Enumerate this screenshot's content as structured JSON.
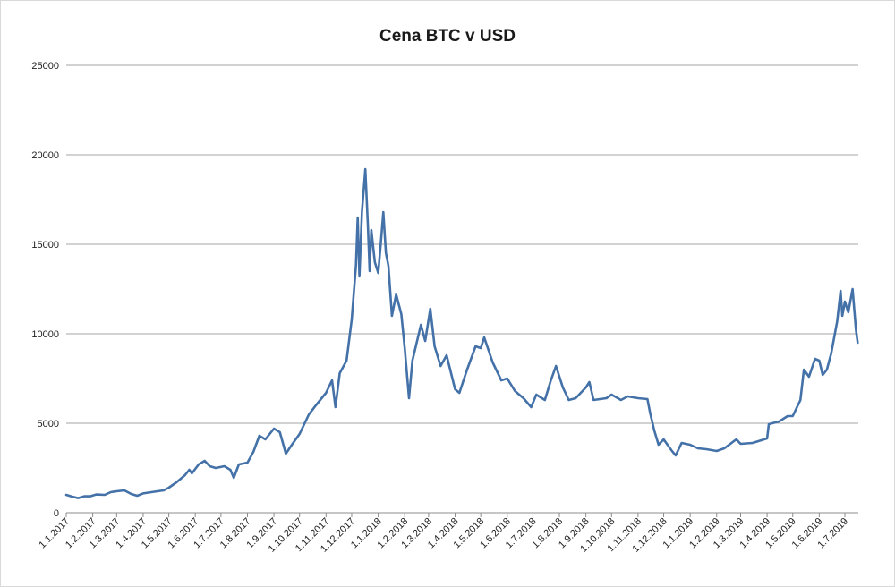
{
  "chart_data": {
    "type": "line",
    "title": "Cena BTC v USD",
    "xlabel": "",
    "ylabel": "",
    "ylim": [
      0,
      25000
    ],
    "yticks": [
      0,
      5000,
      10000,
      15000,
      20000,
      25000
    ],
    "grid": "horizontal",
    "legend": "none",
    "x_tick_labels": [
      "1.1.2017",
      "1.2.2017",
      "1.3.2017",
      "1.4.2017",
      "1.5.2017",
      "1.6.2017",
      "1.7.2017",
      "1.8.2017",
      "1.9.2017",
      "1.10.2017",
      "1.11.2017",
      "1.12.2017",
      "1.1.2018",
      "1.2.2018",
      "1.3.2018",
      "1.4.2018",
      "1.5.2018",
      "1.6.2018",
      "1.7.2018",
      "1.8.2018",
      "1.9.2018",
      "1.10.2018",
      "1.11.2018",
      "1.12.2018",
      "1.1.2019",
      "1.2.2019",
      "1.3.2019",
      "1.4.2019",
      "1.5.2019",
      "1.6.2019",
      "1.7.2019"
    ],
    "series": [
      {
        "color": "#4472a8",
        "points": [
          [
            "1.1.2017",
            1000
          ],
          [
            "8.1.2017",
            900
          ],
          [
            "15.1.2017",
            820
          ],
          [
            "22.1.2017",
            920
          ],
          [
            "29.1.2017",
            920
          ],
          [
            "5.2.2017",
            1020
          ],
          [
            "15.2.2017",
            1000
          ],
          [
            "22.2.2017",
            1150
          ],
          [
            "1.3.2017",
            1200
          ],
          [
            "10.3.2017",
            1250
          ],
          [
            "18.3.2017",
            1050
          ],
          [
            "25.3.2017",
            950
          ],
          [
            "1.4.2017",
            1080
          ],
          [
            "15.4.2017",
            1180
          ],
          [
            "25.4.2017",
            1250
          ],
          [
            "1.5.2017",
            1400
          ],
          [
            "10.5.2017",
            1700
          ],
          [
            "20.5.2017",
            2100
          ],
          [
            "25.5.2017",
            2400
          ],
          [
            "28.5.2017",
            2200
          ],
          [
            "5.6.2017",
            2700
          ],
          [
            "12.6.2017",
            2900
          ],
          [
            "18.6.2017",
            2600
          ],
          [
            "25.6.2017",
            2500
          ],
          [
            "5.7.2017",
            2600
          ],
          [
            "12.7.2017",
            2400
          ],
          [
            "16.7.2017",
            1950
          ],
          [
            "22.7.2017",
            2700
          ],
          [
            "1.8.2017",
            2800
          ],
          [
            "8.8.2017",
            3400
          ],
          [
            "15.8.2017",
            4300
          ],
          [
            "22.8.2017",
            4100
          ],
          [
            "1.9.2017",
            4700
          ],
          [
            "8.9.2017",
            4500
          ],
          [
            "15.9.2017",
            3300
          ],
          [
            "22.9.2017",
            3800
          ],
          [
            "1.10.2017",
            4400
          ],
          [
            "12.10.2017",
            5500
          ],
          [
            "20.10.2017",
            6000
          ],
          [
            "1.11.2017",
            6700
          ],
          [
            "8.11.2017",
            7400
          ],
          [
            "12.11.2017",
            5900
          ],
          [
            "17.11.2017",
            7800
          ],
          [
            "25.11.2017",
            8500
          ],
          [
            "1.12.2017",
            10800
          ],
          [
            "6.12.2017",
            13800
          ],
          [
            "8.12.2017",
            16500
          ],
          [
            "10.12.2017",
            13200
          ],
          [
            "13.12.2017",
            16800
          ],
          [
            "17.12.2017",
            19200
          ],
          [
            "20.12.2017",
            16000
          ],
          [
            "22.12.2017",
            13500
          ],
          [
            "24.12.2017",
            15800
          ],
          [
            "28.12.2017",
            14000
          ],
          [
            "1.1.2018",
            13400
          ],
          [
            "4.1.2018",
            15000
          ],
          [
            "7.1.2018",
            16800
          ],
          [
            "10.1.2018",
            14500
          ],
          [
            "13.1.2018",
            13800
          ],
          [
            "17.1.2018",
            11000
          ],
          [
            "22.1.2018",
            12200
          ],
          [
            "28.1.2018",
            11100
          ],
          [
            "1.2.2018",
            9200
          ],
          [
            "6.2.2018",
            6400
          ],
          [
            "10.2.2018",
            8500
          ],
          [
            "20.2.2018",
            10500
          ],
          [
            "25.2.2018",
            9600
          ],
          [
            "3.3.2018",
            11400
          ],
          [
            "8.3.2018",
            9300
          ],
          [
            "15.3.2018",
            8200
          ],
          [
            "22.3.2018",
            8800
          ],
          [
            "1.4.2018",
            6900
          ],
          [
            "6.4.2018",
            6700
          ],
          [
            "15.4.2018",
            8000
          ],
          [
            "25.4.2018",
            9300
          ],
          [
            "1.5.2018",
            9200
          ],
          [
            "5.5.2018",
            9800
          ],
          [
            "15.5.2018",
            8400
          ],
          [
            "25.5.2018",
            7400
          ],
          [
            "1.6.2018",
            7500
          ],
          [
            "10.6.2018",
            6800
          ],
          [
            "20.6.2018",
            6400
          ],
          [
            "29.6.2018",
            5900
          ],
          [
            "5.7.2018",
            6600
          ],
          [
            "15.7.2018",
            6300
          ],
          [
            "22.7.2018",
            7400
          ],
          [
            "28.7.2018",
            8200
          ],
          [
            "5.8.2018",
            7000
          ],
          [
            "12.8.2018",
            6300
          ],
          [
            "20.8.2018",
            6400
          ],
          [
            "1.9.2018",
            7000
          ],
          [
            "5.9.2018",
            7300
          ],
          [
            "10.9.2018",
            6300
          ],
          [
            "25.9.2018",
            6400
          ],
          [
            "1.10.2018",
            6600
          ],
          [
            "12.10.2018",
            6300
          ],
          [
            "20.10.2018",
            6500
          ],
          [
            "1.11.2018",
            6400
          ],
          [
            "12.11.2018",
            6350
          ],
          [
            "15.11.2018",
            5600
          ],
          [
            "20.11.2018",
            4600
          ],
          [
            "25.11.2018",
            3800
          ],
          [
            "1.12.2018",
            4100
          ],
          [
            "10.12.2018",
            3500
          ],
          [
            "15.12.2018",
            3200
          ],
          [
            "22.12.2018",
            3900
          ],
          [
            "1.1.2019",
            3800
          ],
          [
            "10.1.2019",
            3600
          ],
          [
            "20.1.2019",
            3550
          ],
          [
            "1.2.2019",
            3450
          ],
          [
            "10.2.2019",
            3600
          ],
          [
            "24.2.2019",
            4100
          ],
          [
            "1.3.2019",
            3850
          ],
          [
            "15.3.2019",
            3900
          ],
          [
            "1.4.2019",
            4150
          ],
          [
            "3.4.2019",
            4950
          ],
          [
            "15.4.2019",
            5100
          ],
          [
            "25.4.2019",
            5400
          ],
          [
            "1.5.2019",
            5400
          ],
          [
            "10.5.2019",
            6300
          ],
          [
            "14.5.2019",
            8000
          ],
          [
            "20.5.2019",
            7600
          ],
          [
            "27.5.2019",
            8600
          ],
          [
            "1.6.2019",
            8500
          ],
          [
            "5.6.2019",
            7700
          ],
          [
            "10.6.2019",
            8000
          ],
          [
            "15.6.2019",
            8900
          ],
          [
            "22.6.2019",
            10700
          ],
          [
            "26.6.2019",
            12400
          ],
          [
            "28.6.2019",
            11000
          ],
          [
            "1.7.2019",
            11800
          ],
          [
            "5.7.2019",
            11200
          ],
          [
            "10.7.2019",
            12500
          ],
          [
            "14.7.2019",
            10200
          ],
          [
            "16.7.2019",
            9500
          ]
        ]
      }
    ]
  }
}
